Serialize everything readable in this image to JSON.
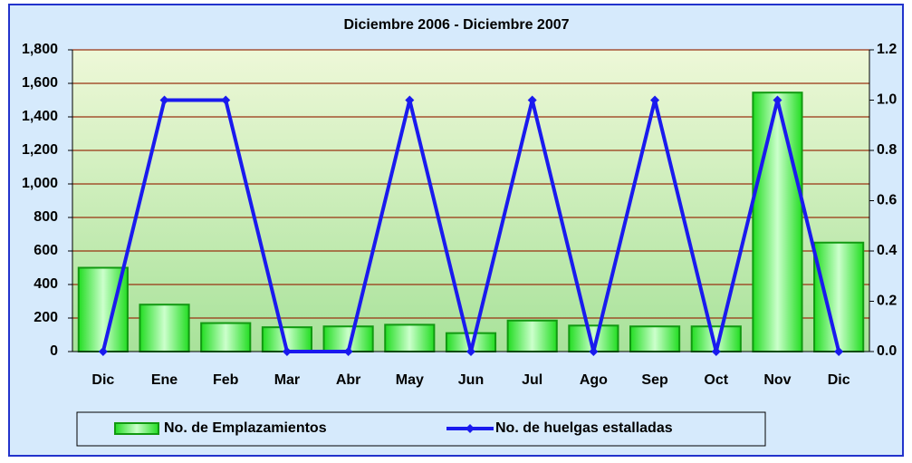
{
  "chart_data": {
    "type": "bar",
    "title": "Diciembre 2006 - Diciembre 2007",
    "categories": [
      "Dic",
      "Ene",
      "Feb",
      "Mar",
      "Abr",
      "May",
      "Jun",
      "Jul",
      "Ago",
      "Sep",
      "Oct",
      "Nov",
      "Dic"
    ],
    "series": [
      {
        "name": "No. de Emplazamientos",
        "type": "bar",
        "color": "#33dd33",
        "values": [
          500,
          280,
          170,
          145,
          150,
          160,
          110,
          185,
          155,
          150,
          150,
          1545,
          650
        ]
      },
      {
        "name": "No. de huelgas estalladas",
        "type": "line",
        "axis": "y2",
        "color": "#1a1aee",
        "values": [
          0,
          1,
          1,
          0,
          0,
          1,
          0,
          1,
          0,
          1,
          0,
          1,
          0
        ]
      }
    ],
    "ylim": [
      0,
      1800
    ],
    "yticks": [
      0,
      200,
      400,
      600,
      800,
      {
        "value": 1000,
        "label": "1,000"
      },
      {
        "value": 1200,
        "label": "1,200"
      },
      {
        "value": 1400,
        "label": "1,400"
      },
      {
        "value": 1600,
        "label": "1,600"
      },
      {
        "value": 1800,
        "label": "1,800"
      }
    ],
    "y2lim": [
      0,
      1.2
    ],
    "y2ticks": [
      {
        "value": 0,
        "label": "0.0"
      },
      0.2,
      0.4,
      0.6,
      0.8,
      {
        "value": 1,
        "label": "1.0"
      },
      1.2
    ],
    "grid": true,
    "legend": "bottom"
  }
}
